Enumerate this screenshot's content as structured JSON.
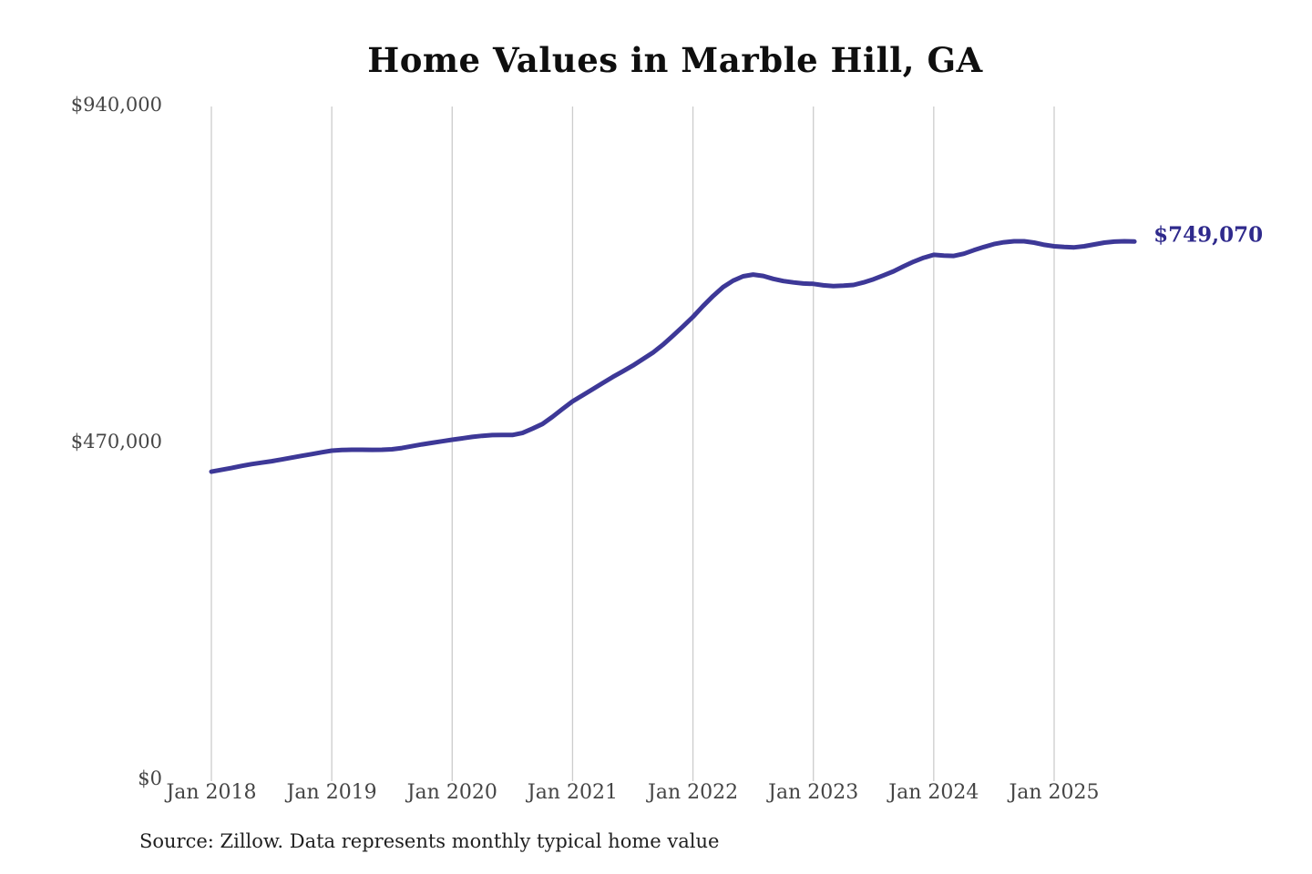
{
  "title": "Home Values in Marble Hill, GA",
  "source": "Source: Zillow. Data represents monthly typical home value",
  "chart_data": {
    "type": "line",
    "title": "Home Values in Marble Hill, GA",
    "series_name": "Monthly typical home value",
    "xlabel": "",
    "ylabel": "",
    "ylim": [
      0,
      940000
    ],
    "grid": "vertical-only",
    "legend": "none",
    "line_color": "#3d3897",
    "grid_color": "#cccccc",
    "tick_color": "#454545",
    "end_label": "$749,070",
    "end_label_color": "#2f2a8c",
    "end_value": 749070,
    "y_tick_labels": [
      "$0",
      "$470,000",
      "$940,000"
    ],
    "y_tick_values": [
      0,
      470000,
      940000
    ],
    "x_tick_labels": [
      "Jan 2018",
      "Jan 2019",
      "Jan 2020",
      "Jan 2021",
      "Jan 2022",
      "Jan 2023",
      "Jan 2024",
      "Jan 2025"
    ],
    "x_tick_month_indices": [
      0,
      12,
      24,
      36,
      48,
      60,
      72,
      84
    ],
    "x": [
      "2018-01",
      "2018-02",
      "2018-03",
      "2018-04",
      "2018-05",
      "2018-06",
      "2018-07",
      "2018-08",
      "2018-09",
      "2018-10",
      "2018-11",
      "2018-12",
      "2019-01",
      "2019-02",
      "2019-03",
      "2019-04",
      "2019-05",
      "2019-06",
      "2019-07",
      "2019-08",
      "2019-09",
      "2019-10",
      "2019-11",
      "2019-12",
      "2020-01",
      "2020-02",
      "2020-03",
      "2020-04",
      "2020-05",
      "2020-06",
      "2020-07",
      "2020-08",
      "2020-09",
      "2020-10",
      "2020-11",
      "2020-12",
      "2021-01",
      "2021-02",
      "2021-03",
      "2021-04",
      "2021-05",
      "2021-06",
      "2021-07",
      "2021-08",
      "2021-09",
      "2021-10",
      "2021-11",
      "2021-12",
      "2022-01",
      "2022-02",
      "2022-03",
      "2022-04",
      "2022-05",
      "2022-06",
      "2022-07",
      "2022-08",
      "2022-09",
      "2022-10",
      "2022-11",
      "2022-12",
      "2023-01",
      "2023-02",
      "2023-03",
      "2023-04",
      "2023-05",
      "2023-06",
      "2023-07",
      "2023-08",
      "2023-09",
      "2023-10",
      "2023-11",
      "2023-12",
      "2024-01",
      "2024-02",
      "2024-03",
      "2024-04",
      "2024-05",
      "2024-06",
      "2024-07",
      "2024-08",
      "2024-09",
      "2024-10",
      "2024-11",
      "2024-12",
      "2025-01",
      "2025-02",
      "2025-03",
      "2025-04",
      "2025-05",
      "2025-06",
      "2025-07",
      "2025-08",
      "2025-09"
    ],
    "values": [
      428000,
      430500,
      433000,
      436000,
      438500,
      440500,
      442500,
      445000,
      447500,
      450000,
      452500,
      455000,
      457300,
      458300,
      458600,
      458600,
      458500,
      458600,
      459200,
      461000,
      463500,
      466000,
      468200,
      470400,
      472500,
      474500,
      476500,
      478000,
      479000,
      479300,
      479200,
      482000,
      488000,
      494500,
      504500,
      515500,
      526000,
      534500,
      543000,
      551500,
      560000,
      568000,
      576000,
      585000,
      594000,
      605000,
      617500,
      630500,
      644000,
      659000,
      673000,
      685500,
      694500,
      700500,
      703000,
      701000,
      697000,
      694000,
      692000,
      690500,
      690000,
      688000,
      687000,
      687500,
      688500,
      692000,
      696500,
      702000,
      707500,
      714500,
      721000,
      726500,
      730500,
      729500,
      729000,
      732000,
      737000,
      741500,
      745500,
      748000,
      749500,
      749500,
      747500,
      744500,
      742500,
      741500,
      741000,
      742500,
      745000,
      747500,
      749000,
      749500,
      749070
    ]
  }
}
